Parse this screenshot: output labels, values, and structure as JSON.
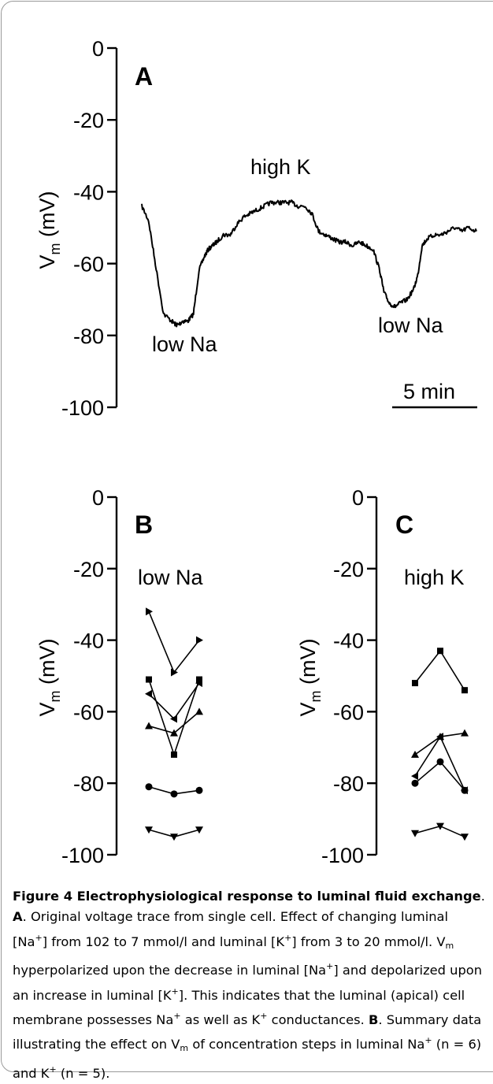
{
  "chart_data": [
    {
      "panel": "A",
      "type": "line",
      "ylabel": "V",
      "ylabel_sub": "m",
      "ylabel_unit": " (mV)",
      "yticks": [
        "0",
        "-20",
        "-40",
        "-60",
        "-80",
        "-100"
      ],
      "ylim": [
        -100,
        0
      ],
      "scale_bar": "5 min",
      "annotations": [
        "low Na",
        "high K",
        "low Na"
      ],
      "trace": {
        "t": [
          0,
          0.5,
          1.0,
          1.6,
          2.2,
          2.5,
          2.7,
          3.0,
          3.4,
          3.8,
          4.2,
          4.6,
          4.9,
          5.2,
          5.5,
          6.0,
          6.5,
          7.0,
          7.5,
          8.0,
          8.5,
          9.0,
          9.5,
          10.0,
          10.5,
          11.0,
          11.5,
          12.0,
          12.5,
          13.0,
          13.5,
          14.0,
          14.5,
          15.0,
          15.5,
          16.0,
          16.5,
          17.0,
          17.5,
          17.8,
          18.2,
          18.6,
          19.0,
          19.5,
          20.0,
          20.3,
          20.6,
          21.0,
          21.5,
          22.0,
          22.5,
          23.0,
          23.5,
          24.0,
          24.6
        ],
        "v": [
          -44,
          -48,
          -60,
          -74,
          -76,
          -77,
          -77,
          -76,
          -76,
          -74,
          -62,
          -58,
          -56,
          -55,
          -54,
          -52,
          -52,
          -49,
          -47,
          -46,
          -45,
          -44,
          -43,
          -43,
          -43,
          -43,
          -44,
          -44,
          -46,
          -51,
          -52,
          -53,
          -54,
          -54,
          -55,
          -54,
          -55,
          -56,
          -62,
          -68,
          -71,
          -72,
          -71,
          -70,
          -67,
          -63,
          -55,
          -53,
          -52,
          -52,
          -51,
          -50,
          -51,
          -50,
          -51
        ]
      }
    },
    {
      "panel": "B",
      "type": "line",
      "title": "low Na",
      "ylabel": "V",
      "ylabel_sub": "m",
      "ylabel_unit": " (mV)",
      "yticks": [
        "0",
        "-20",
        "-40",
        "-60",
        "-80",
        "-100"
      ],
      "ylim": [
        -100,
        0
      ],
      "x": [
        0,
        1,
        2
      ],
      "series": [
        {
          "marker": "tri-right",
          "values": [
            -32,
            -49,
            -40
          ]
        },
        {
          "marker": "square",
          "values": [
            -51,
            -72,
            -51
          ]
        },
        {
          "marker": "tri-left",
          "values": [
            -55,
            -62,
            -52
          ]
        },
        {
          "marker": "tri-up",
          "values": [
            -64,
            -66,
            -60
          ]
        },
        {
          "marker": "circle",
          "values": [
            -81,
            -83,
            -82
          ]
        },
        {
          "marker": "tri-down",
          "values": [
            -93,
            -95,
            -93
          ]
        }
      ]
    },
    {
      "panel": "C",
      "type": "line",
      "title": "high K",
      "ylabel": "V",
      "ylabel_sub": "m",
      "ylabel_unit": " (mV)",
      "yticks": [
        "0",
        "-20",
        "-40",
        "-60",
        "-80",
        "-100"
      ],
      "ylim": [
        -100,
        0
      ],
      "x": [
        0,
        1,
        2
      ],
      "series": [
        {
          "marker": "square",
          "values": [
            -52,
            -43,
            -54
          ]
        },
        {
          "marker": "tri-up",
          "values": [
            -72,
            -67,
            -66
          ]
        },
        {
          "marker": "tri-left",
          "values": [
            -78,
            -67,
            -82
          ]
        },
        {
          "marker": "circle",
          "values": [
            -80,
            -74,
            -82
          ]
        },
        {
          "marker": "tri-down",
          "values": [
            -94,
            -92,
            -95
          ]
        }
      ]
    }
  ],
  "caption": {
    "title": "Figure 4 Electrophysiological response to luminal fluid exchange",
    "a_label": "A",
    "a_text_1": ". Original voltage trace from single cell. Effect of changing luminal [Na",
    "plus": "+",
    "a_text_2": "] from 102 to 7 mmol/l and luminal [K",
    "a_text_3": "] from 3 to 20 mmol/l. V",
    "m": "m",
    "a_text_4": " hyperpolarized upon the decrease in luminal [Na",
    "a_text_5": "] and depolarized upon an increase in luminal [K",
    "a_text_6": "]. This indicates that the luminal (apical) cell membrane possesses Na",
    "a_text_7": " as well as K",
    "a_text_8": " conductances.",
    "b_label": "B",
    "b_text_1": ". Summary data illustrating the effect on V",
    "b_text_2": " of concentration steps in luminal Na",
    "b_text_3": " (n = 6) and K",
    "b_text_4": " (n = 5)."
  }
}
